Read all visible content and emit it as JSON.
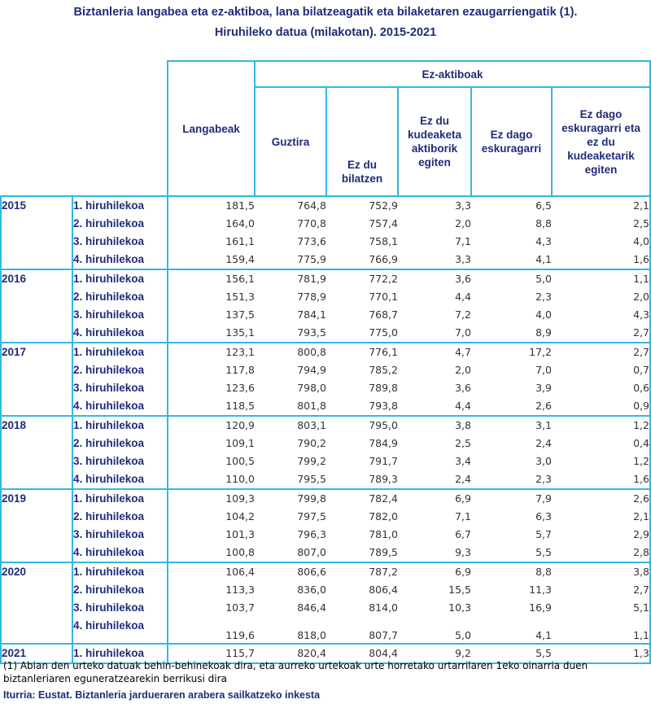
{
  "title": "Biztanleria langabea eta ez-aktiboa, lana bilatzeagatik eta bilaketaren ezaugarriengatik (1).",
  "subtitle": "Hiruhileko datua (milakotan). 2015-2021",
  "header": {
    "group": "Ez-aktiboak",
    "col_langabeak": "Langabeak",
    "col_guztira": "Guztira",
    "col_bilatzen": "Ez du bilatzen",
    "col_kudeaketa": "Ez du kudeaketa aktiborik egiten",
    "col_eskuragarri": "Ez dago eskuragarri",
    "col_eskuragarri_kud": "Ez dago eskuragarri eta ez du kudeaketarik egiten"
  },
  "rows": [
    {
      "year": "2015",
      "q": "1. hiruhilekoa",
      "v": [
        "181,5",
        "764,8",
        "752,9",
        "3,3",
        "6,5",
        "2,1"
      ]
    },
    {
      "year": "",
      "q": "2. hiruhilekoa",
      "v": [
        "164,0",
        "770,8",
        "757,4",
        "2,0",
        "8,8",
        "2,5"
      ]
    },
    {
      "year": "",
      "q": "3. hiruhilekoa",
      "v": [
        "161,1",
        "773,6",
        "758,1",
        "7,1",
        "4,3",
        "4,0"
      ]
    },
    {
      "year": "",
      "q": "4. hiruhilekoa",
      "v": [
        "159,4",
        "775,9",
        "766,9",
        "3,3",
        "4,1",
        "1,6"
      ]
    },
    {
      "year": "2016",
      "q": "1. hiruhilekoa",
      "v": [
        "156,1",
        "781,9",
        "772,2",
        "3,6",
        "5,0",
        "1,1"
      ]
    },
    {
      "year": "",
      "q": "2. hiruhilekoa",
      "v": [
        "151,3",
        "778,9",
        "770,1",
        "4,4",
        "2,3",
        "2,0"
      ]
    },
    {
      "year": "",
      "q": "3. hiruhilekoa",
      "v": [
        "137,5",
        "784,1",
        "768,7",
        "7,2",
        "4,0",
        "4,3"
      ]
    },
    {
      "year": "",
      "q": "4. hiruhilekoa",
      "v": [
        "135,1",
        "793,5",
        "775,0",
        "7,0",
        "8,9",
        "2,7"
      ]
    },
    {
      "year": "2017",
      "q": "1. hiruhilekoa",
      "v": [
        "123,1",
        "800,8",
        "776,1",
        "4,7",
        "17,2",
        "2,7"
      ]
    },
    {
      "year": "",
      "q": "2. hiruhilekoa",
      "v": [
        "117,8",
        "794,9",
        "785,2",
        "2,0",
        "7,0",
        "0,7"
      ]
    },
    {
      "year": "",
      "q": "3. hiruhilekoa",
      "v": [
        "123,6",
        "798,0",
        "789,8",
        "3,6",
        "3,9",
        "0,6"
      ]
    },
    {
      "year": "",
      "q": "4. hiruhilekoa",
      "v": [
        "118,5",
        "801,8",
        "793,8",
        "4,4",
        "2,6",
        "0,9"
      ]
    },
    {
      "year": "2018",
      "q": "1. hiruhilekoa",
      "v": [
        "120,9",
        "803,1",
        "795,0",
        "3,8",
        "3,1",
        "1,2"
      ]
    },
    {
      "year": "",
      "q": "2. hiruhilekoa",
      "v": [
        "109,1",
        "790,2",
        "784,9",
        "2,5",
        "2,4",
        "0,4"
      ]
    },
    {
      "year": "",
      "q": "3. hiruhilekoa",
      "v": [
        "100,5",
        "799,2",
        "791,7",
        "3,4",
        "3,0",
        "1,2"
      ]
    },
    {
      "year": "",
      "q": "4. hiruhilekoa",
      "v": [
        "110,0",
        "795,5",
        "789,3",
        "2,4",
        "2,3",
        "1,6"
      ]
    },
    {
      "year": "2019",
      "q": "1. hiruhilekoa",
      "v": [
        "109,3",
        "799,8",
        "782,4",
        "6,9",
        "7,9",
        "2,6"
      ]
    },
    {
      "year": "",
      "q": "2. hiruhilekoa",
      "v": [
        "104,2",
        "797,5",
        "782,0",
        "7,1",
        "6,3",
        "2,1"
      ]
    },
    {
      "year": "",
      "q": "3. hiruhilekoa",
      "v": [
        "101,3",
        "796,3",
        "781,0",
        "6,7",
        "5,7",
        "2,9"
      ]
    },
    {
      "year": "",
      "q": "4. hiruhilekoa",
      "v": [
        "100,8",
        "807,0",
        "789,5",
        "9,3",
        "5,5",
        "2,8"
      ]
    },
    {
      "year": "2020",
      "q": "1. hiruhilekoa",
      "v": [
        "106,4",
        "806,6",
        "787,2",
        "6,9",
        "8,8",
        "3,8"
      ]
    },
    {
      "year": "",
      "q": "2. hiruhilekoa",
      "v": [
        "113,3",
        "836,0",
        "806,4",
        "15,5",
        "11,3",
        "2,7"
      ]
    },
    {
      "year": "",
      "q": "3. hiruhilekoa",
      "v": [
        "103,7",
        "846,4",
        "814,0",
        "10,3",
        "16,9",
        "5,1"
      ]
    },
    {
      "year": "",
      "q": "4. hiruhilekoa",
      "v": [
        "119,6",
        "818,0",
        "807,7",
        "5,0",
        "4,1",
        "1,1"
      ]
    },
    {
      "year": "2021",
      "q": "1. hiruhilekoa",
      "v": [
        "115,7",
        "820,4",
        "804,4",
        "9,2",
        "5,5",
        "1,3"
      ]
    }
  ],
  "footnote": "(1) Abian den urteko datuak behin-behinekoak dira, eta aurreko urtekoak urte horretako urtarrilaren 1eko oinarria duen biztanleriaren eguneratzearekin berrikusi dira",
  "source": "Iturria: Eustat. Biztanleria jardueraren arabera sailkatzeko inkesta"
}
